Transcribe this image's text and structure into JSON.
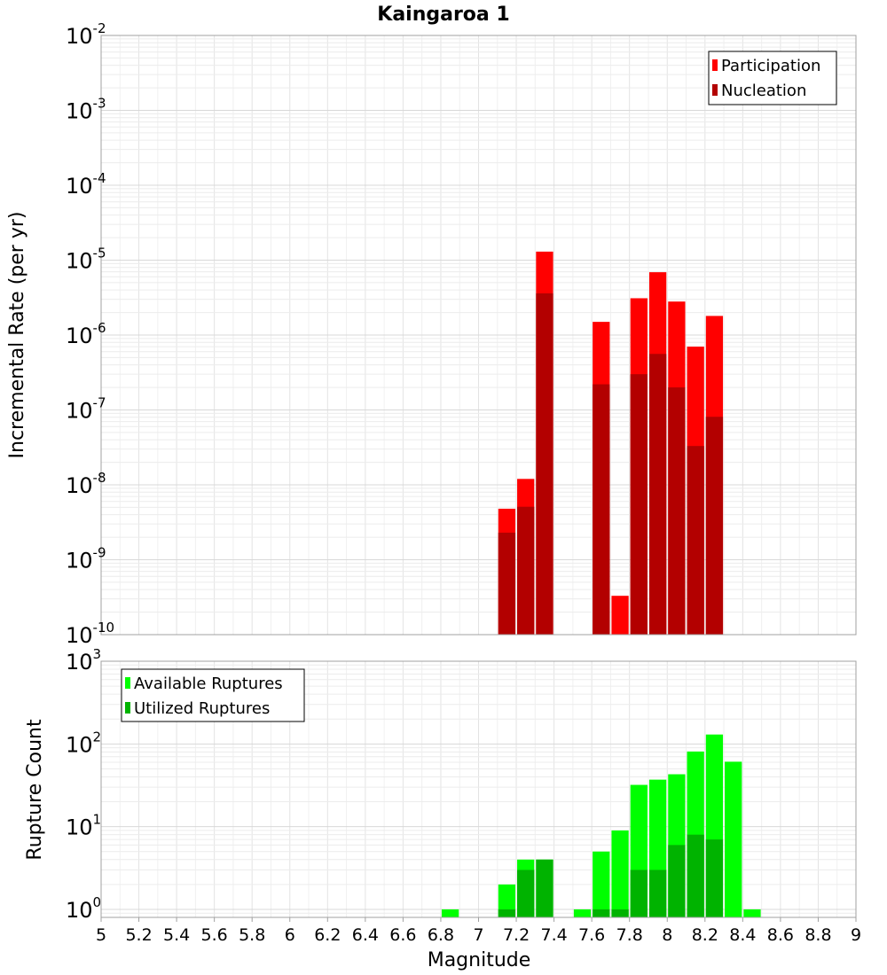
{
  "chart_data": [
    {
      "type": "bar",
      "title": "Kaingaroa 1",
      "xlabel": "",
      "ylabel": "Incremental Rate (per yr)",
      "yscale": "log",
      "xlim": [
        5,
        9
      ],
      "ylim": [
        1e-10,
        0.01
      ],
      "ytick_exponents": [
        "-2",
        "-3",
        "-4",
        "-5",
        "-6",
        "-7",
        "-8",
        "-9",
        "-10"
      ],
      "bin_width": 0.1,
      "legend": "top-right",
      "grid": true,
      "series": [
        {
          "name": "Participation",
          "color": "#ff0000",
          "x": [
            7.15,
            7.25,
            7.35,
            7.65,
            7.75,
            7.85,
            7.95,
            8.05,
            8.15,
            8.25
          ],
          "values": [
            4.8e-09,
            1.2e-08,
            1.3e-05,
            1.5e-06,
            3.3e-10,
            3.1e-06,
            6.9e-06,
            2.8e-06,
            7e-07,
            1.8e-06
          ]
        },
        {
          "name": "Nucleation",
          "color": "#b30000",
          "x": [
            7.15,
            7.25,
            7.35,
            7.65,
            7.85,
            7.95,
            8.05,
            8.15,
            8.25
          ],
          "values": [
            2.3e-09,
            5.1e-09,
            3.6e-06,
            2.2e-07,
            3e-07,
            5.6e-07,
            2e-07,
            3.3e-08,
            8.1e-08
          ]
        }
      ]
    },
    {
      "type": "bar",
      "title": "",
      "xlabel": "Magnitude",
      "ylabel": "Rupture Count",
      "yscale": "log",
      "xlim": [
        5,
        9
      ],
      "ylim": [
        0.8,
        1000
      ],
      "xticks": [
        "5",
        "5.2",
        "5.4",
        "5.6",
        "5.8",
        "6",
        "6.2",
        "6.4",
        "6.6",
        "6.8",
        "7",
        "7.2",
        "7.4",
        "7.6",
        "7.8",
        "8",
        "8.2",
        "8.4",
        "8.6",
        "8.8",
        "9"
      ],
      "ytick_exponents": [
        "3",
        "2",
        "1",
        "0"
      ],
      "bin_width": 0.1,
      "legend": "top-left",
      "grid": true,
      "series": [
        {
          "name": "Available Ruptures",
          "color": "#00ff00",
          "x": [
            6.85,
            7.15,
            7.25,
            7.35,
            7.55,
            7.65,
            7.75,
            7.85,
            7.95,
            8.05,
            8.15,
            8.25,
            8.35,
            8.45
          ],
          "values": [
            1,
            2,
            4,
            4,
            1,
            5,
            9,
            32,
            37,
            43,
            81,
            130,
            61,
            1
          ]
        },
        {
          "name": "Utilized Ruptures",
          "color": "#00b300",
          "x": [
            7.15,
            7.25,
            7.35,
            7.65,
            7.75,
            7.85,
            7.95,
            8.05,
            8.15,
            8.25
          ],
          "values": [
            1,
            3,
            4,
            1,
            1,
            3,
            3,
            6,
            8,
            7
          ]
        }
      ]
    }
  ]
}
